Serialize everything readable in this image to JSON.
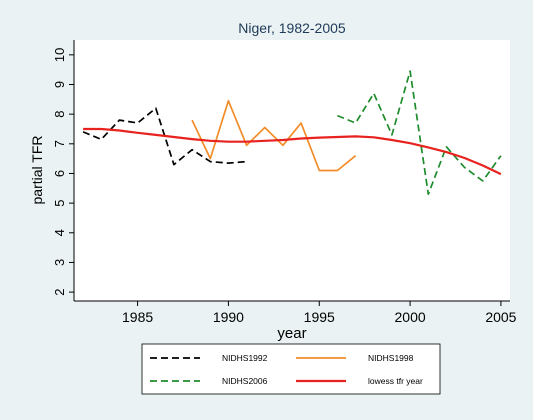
{
  "chart_data": {
    "type": "line",
    "title": "Niger, 1982-2005",
    "xlabel": "year",
    "ylabel": "partial TFR",
    "xlim": [
      1981.5,
      2005.5
    ],
    "ylim": [
      1.7,
      10.5
    ],
    "xticks": [
      1985,
      1990,
      1995,
      2000,
      2005
    ],
    "yticks": [
      2,
      3,
      4,
      5,
      6,
      7,
      8,
      9,
      10
    ],
    "grid": false,
    "legend_position": "bottom",
    "series": [
      {
        "name": "NIDHS1992",
        "color": "#000000",
        "dash": "dashed",
        "x": [
          1982,
          1983,
          1984,
          1985,
          1986,
          1987,
          1988,
          1989,
          1990,
          1991
        ],
        "y": [
          7.4,
          7.15,
          7.8,
          7.7,
          8.2,
          6.3,
          6.8,
          6.4,
          6.35,
          6.4
        ]
      },
      {
        "name": "NIDHS1998",
        "color": "#f28c28",
        "dash": "solid",
        "x": [
          1988,
          1989,
          1990,
          1991,
          1992,
          1993,
          1994,
          1995,
          1996,
          1997
        ],
        "y": [
          7.8,
          6.5,
          8.45,
          6.95,
          7.55,
          6.95,
          7.7,
          6.1,
          6.1,
          6.6
        ]
      },
      {
        "name": "NIDHS2006",
        "color": "#1e8c2c",
        "dash": "dashed",
        "x": [
          1996,
          1997,
          1998,
          1999,
          2000,
          2001,
          2002,
          2003,
          2004,
          2005
        ],
        "y": [
          7.95,
          7.7,
          8.7,
          7.3,
          9.45,
          5.3,
          6.9,
          6.2,
          5.75,
          6.6
        ]
      },
      {
        "name": "lowess tfr year",
        "color": "#e8221e",
        "dash": "solid",
        "x": [
          1982,
          1983,
          1984,
          1985,
          1986,
          1987,
          1988,
          1989,
          1990,
          1991,
          1992,
          1993,
          1994,
          1995,
          1996,
          1997,
          1998,
          1999,
          2000,
          2001,
          2002,
          2003,
          2004,
          2005
        ],
        "y": [
          7.5,
          7.5,
          7.45,
          7.37,
          7.3,
          7.23,
          7.16,
          7.1,
          7.07,
          7.07,
          7.1,
          7.13,
          7.18,
          7.21,
          7.23,
          7.25,
          7.22,
          7.13,
          7.02,
          6.88,
          6.72,
          6.52,
          6.27,
          5.98
        ]
      }
    ]
  }
}
